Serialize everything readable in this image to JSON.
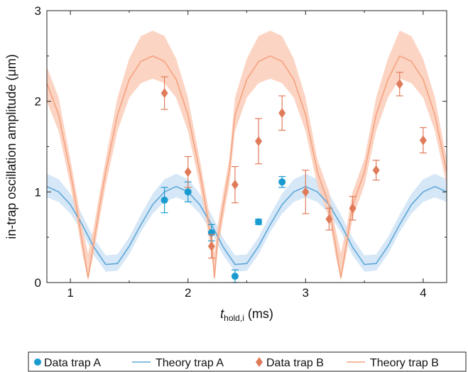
{
  "chart_data": {
    "type": "scatter",
    "xlabel_main": "t",
    "xlabel_sub": "hold,i",
    "xlabel_unit": " (ms)",
    "ylabel": "in-trap oscillation amplitude (μm)",
    "xlim": [
      0.8,
      4.2
    ],
    "ylim": [
      0,
      3
    ],
    "x_ticks": [
      1,
      2,
      3,
      4
    ],
    "y_ticks": [
      0,
      1,
      2,
      3
    ],
    "grid": false,
    "legend_position": "bottom",
    "series": [
      {
        "name": "Data trap A",
        "kind": "points",
        "marker": "circle",
        "color": "#1a9bd0",
        "points": [
          {
            "x": 1.8,
            "y": 0.91,
            "err": 0.14
          },
          {
            "x": 2.0,
            "y": 1.0,
            "err": 0.11
          },
          {
            "x": 2.2,
            "y": 0.55,
            "err": 0.09
          },
          {
            "x": 2.4,
            "y": 0.07,
            "err": 0.07
          },
          {
            "x": 2.6,
            "y": 0.67,
            "err": 0.03
          },
          {
            "x": 2.8,
            "y": 1.11,
            "err": 0.06
          }
        ]
      },
      {
        "name": "Theory trap A",
        "kind": "line",
        "color": "#5ea8d8",
        "band_color": "#cfe3f6",
        "x": [
          0.8,
          0.9,
          1.0,
          1.1,
          1.2,
          1.3,
          1.4,
          1.5,
          1.6,
          1.7,
          1.8,
          1.9,
          2.0,
          2.1,
          2.2,
          2.3,
          2.4,
          2.5,
          2.6,
          2.7,
          2.8,
          2.9,
          3.0,
          3.1,
          3.2,
          3.3,
          3.4,
          3.5,
          3.6,
          3.7,
          3.8,
          3.9,
          4.0,
          4.1,
          4.2
        ],
        "y": [
          1.06,
          1.0,
          0.86,
          0.64,
          0.39,
          0.2,
          0.21,
          0.4,
          0.64,
          0.86,
          1.0,
          1.06,
          1.0,
          0.86,
          0.64,
          0.39,
          0.2,
          0.21,
          0.4,
          0.64,
          0.86,
          1.0,
          1.06,
          1.0,
          0.86,
          0.64,
          0.39,
          0.2,
          0.21,
          0.4,
          0.64,
          0.86,
          1.0,
          1.06,
          1.0
        ],
        "band_lower": [
          0.94,
          0.89,
          0.76,
          0.56,
          0.3,
          0.12,
          0.13,
          0.31,
          0.56,
          0.76,
          0.89,
          0.94,
          0.89,
          0.76,
          0.56,
          0.3,
          0.12,
          0.13,
          0.31,
          0.56,
          0.76,
          0.89,
          0.94,
          0.89,
          0.76,
          0.56,
          0.3,
          0.12,
          0.13,
          0.31,
          0.56,
          0.76,
          0.89,
          0.94,
          0.89
        ],
        "band_upper": [
          1.2,
          1.14,
          0.98,
          0.75,
          0.49,
          0.3,
          0.31,
          0.5,
          0.75,
          0.98,
          1.14,
          1.2,
          1.14,
          0.98,
          0.75,
          0.49,
          0.3,
          0.31,
          0.5,
          0.75,
          0.98,
          1.14,
          1.2,
          1.14,
          0.98,
          0.75,
          0.49,
          0.3,
          0.31,
          0.5,
          0.75,
          0.98,
          1.14,
          1.2,
          1.14
        ]
      },
      {
        "name": "Data trap B",
        "kind": "points",
        "marker": "diamond",
        "color": "#e07b5a",
        "points": [
          {
            "x": 1.8,
            "y": 2.09,
            "err": 0.18
          },
          {
            "x": 2.0,
            "y": 1.22,
            "err": 0.17
          },
          {
            "x": 2.2,
            "y": 0.4,
            "err": 0.13
          },
          {
            "x": 2.4,
            "y": 1.08,
            "err": 0.2
          },
          {
            "x": 2.6,
            "y": 1.56,
            "err": 0.25
          },
          {
            "x": 2.8,
            "y": 1.87,
            "err": 0.19
          },
          {
            "x": 3.0,
            "y": 1.0,
            "err": 0.24
          },
          {
            "x": 3.2,
            "y": 0.7,
            "err": 0.12
          },
          {
            "x": 3.4,
            "y": 0.82,
            "err": 0.13
          },
          {
            "x": 3.6,
            "y": 1.24,
            "err": 0.11
          },
          {
            "x": 3.8,
            "y": 2.19,
            "err": 0.13
          },
          {
            "x": 4.0,
            "y": 1.57,
            "err": 0.14
          }
        ]
      },
      {
        "name": "Theory trap B",
        "kind": "line",
        "color": "#f4a27f",
        "band_color": "#fccdb8",
        "x": [
          0.8,
          0.9,
          1.0,
          1.05,
          1.1,
          1.15,
          1.2,
          1.25,
          1.3,
          1.4,
          1.5,
          1.6,
          1.7,
          1.8,
          1.9,
          2.0,
          2.1,
          2.15,
          2.2,
          2.225,
          2.25,
          2.3,
          2.35,
          2.4,
          2.5,
          2.6,
          2.7,
          2.8,
          2.9,
          3.0,
          3.1,
          3.2,
          3.25,
          3.3,
          3.35,
          3.4,
          3.5,
          3.6,
          3.7,
          3.8,
          3.9,
          4.0,
          4.1,
          4.2
        ],
        "y": [
          2.2,
          1.85,
          1.22,
          0.85,
          0.45,
          0.05,
          0.45,
          0.85,
          1.22,
          1.85,
          2.24,
          2.44,
          2.5,
          2.44,
          2.24,
          1.85,
          1.22,
          0.85,
          0.45,
          0.05,
          0.45,
          0.85,
          1.22,
          1.85,
          2.24,
          2.44,
          2.5,
          2.44,
          2.24,
          1.85,
          1.22,
          0.85,
          0.45,
          0.05,
          0.45,
          0.85,
          1.22,
          1.85,
          2.24,
          2.5,
          2.44,
          2.24,
          1.85,
          1.22
        ],
        "band_lower": [
          2.0,
          1.67,
          1.07,
          0.71,
          0.33,
          0.02,
          0.33,
          0.71,
          1.07,
          1.67,
          2.04,
          2.2,
          2.25,
          2.2,
          2.04,
          1.67,
          1.07,
          0.71,
          0.33,
          0.02,
          0.33,
          0.71,
          1.07,
          1.67,
          2.04,
          2.2,
          2.25,
          2.2,
          2.04,
          1.67,
          1.07,
          0.71,
          0.33,
          0.02,
          0.33,
          0.71,
          1.07,
          1.67,
          2.04,
          2.25,
          2.2,
          2.04,
          1.67,
          1.07
        ],
        "band_upper": [
          2.38,
          2.04,
          1.36,
          1.0,
          0.62,
          0.32,
          0.62,
          1.0,
          1.36,
          2.04,
          2.47,
          2.72,
          2.78,
          2.72,
          2.47,
          2.04,
          1.36,
          1.0,
          0.62,
          0.32,
          0.62,
          1.0,
          1.36,
          2.04,
          2.47,
          2.72,
          2.78,
          2.72,
          2.47,
          2.04,
          1.36,
          1.0,
          0.62,
          0.32,
          0.62,
          1.0,
          1.36,
          2.04,
          2.47,
          2.78,
          2.72,
          2.47,
          2.04,
          1.36
        ]
      }
    ]
  },
  "legend": {
    "items": [
      {
        "label": "Data trap A",
        "symbol": "circle",
        "color": "#1a9bd0"
      },
      {
        "label": "Theory trap A",
        "symbol": "line",
        "color": "#5ea8d8"
      },
      {
        "label": "Data trap B",
        "symbol": "diamond",
        "color": "#e07b5a"
      },
      {
        "label": "Theory trap B",
        "symbol": "line",
        "color": "#f4a27f"
      }
    ]
  }
}
